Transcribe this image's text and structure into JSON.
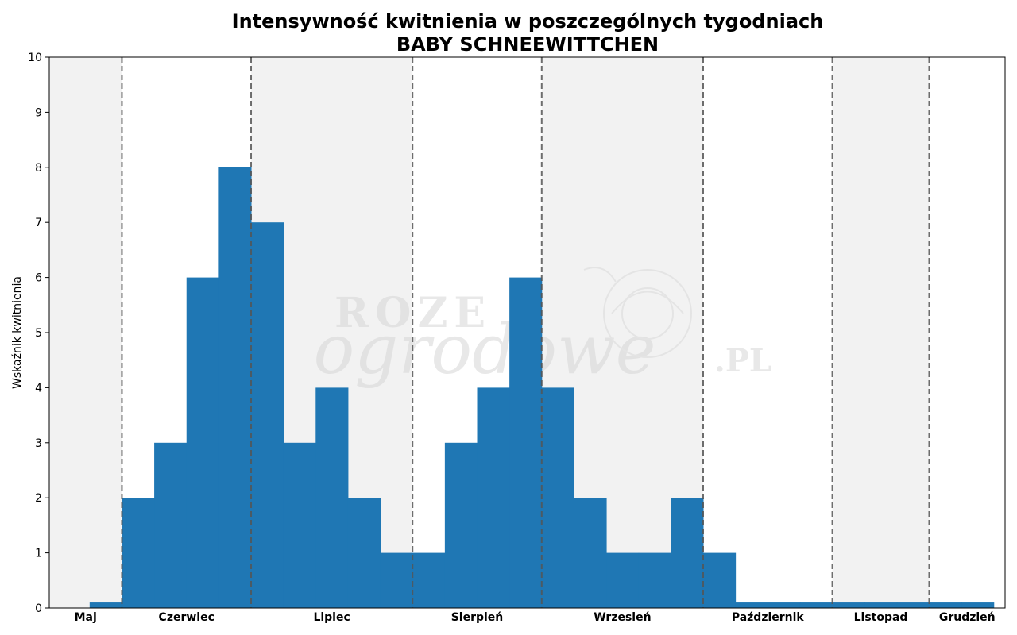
{
  "chart_data": {
    "type": "bar",
    "title_lines": [
      "Intensywność kwitnienia w poszczególnych tygodniach",
      "BABY SCHNEEWITTCHEN"
    ],
    "ylabel": "Wskaźnik kwitnienia",
    "xlabel": "",
    "ylim": [
      0,
      10
    ],
    "yticks": [
      0,
      1,
      2,
      3,
      4,
      5,
      6,
      7,
      8,
      9,
      10
    ],
    "grid": false,
    "weeks_x_range": [
      0,
      29.6
    ],
    "series": [
      {
        "values": [
          0.1,
          2,
          3,
          6,
          8,
          7,
          3,
          4,
          2,
          1,
          1,
          3,
          4,
          6,
          4,
          2,
          1,
          1,
          2,
          1,
          0.1,
          0.1,
          0.1,
          0.1,
          0.1,
          0.1,
          0.1,
          0.1
        ],
        "color": "#1f77b4"
      }
    ],
    "months": [
      {
        "label": "Maj",
        "start": 0,
        "end": 2.25,
        "shaded": true
      },
      {
        "label": "Czerwiec",
        "start": 2.25,
        "end": 6.25,
        "shaded": false
      },
      {
        "label": "Lipiec",
        "start": 6.25,
        "end": 11.25,
        "shaded": true
      },
      {
        "label": "Sierpień",
        "start": 11.25,
        "end": 15.25,
        "shaded": false
      },
      {
        "label": "Wrzesień",
        "start": 15.25,
        "end": 20.25,
        "shaded": true
      },
      {
        "label": "Październik",
        "start": 20.25,
        "end": 24.25,
        "shaded": false
      },
      {
        "label": "Listopad",
        "start": 24.25,
        "end": 27.25,
        "shaded": true
      },
      {
        "label": "Grudzień",
        "start": 27.25,
        "end": 29.6,
        "shaded": false
      }
    ],
    "shade_color": "#f2f2f2",
    "divider_color": "#555555"
  },
  "watermark": {
    "line1": "ROZE",
    "line2": "ogrodowe",
    "suffix": ".PL"
  }
}
